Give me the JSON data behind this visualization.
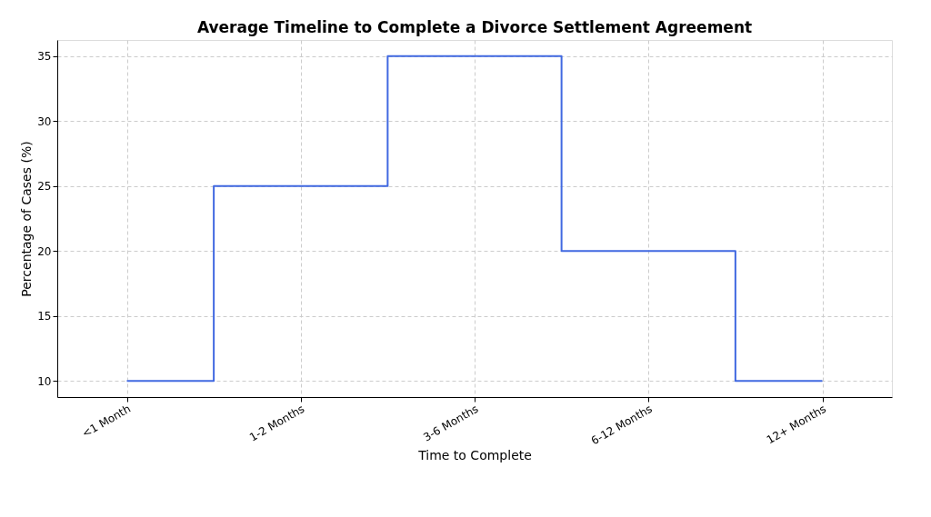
{
  "chart_data": {
    "type": "step",
    "title": "Average Timeline to Complete a Divorce Settlement Agreement",
    "xlabel": "Time to Complete",
    "ylabel": "Percentage of Cases (%)",
    "categories": [
      "<1 Month",
      "1-2 Months",
      "3-6 Months",
      "6-12 Months",
      "12+ Months"
    ],
    "series": [
      {
        "color": "#4169e1",
        "values": [
          10,
          25,
          35,
          20,
          10
        ]
      }
    ],
    "ylim": [
      8.75,
      36.25
    ],
    "yticks": [
      10,
      15,
      20,
      25,
      30,
      35
    ],
    "grid": true,
    "marker": "none",
    "line_style": "solid"
  }
}
